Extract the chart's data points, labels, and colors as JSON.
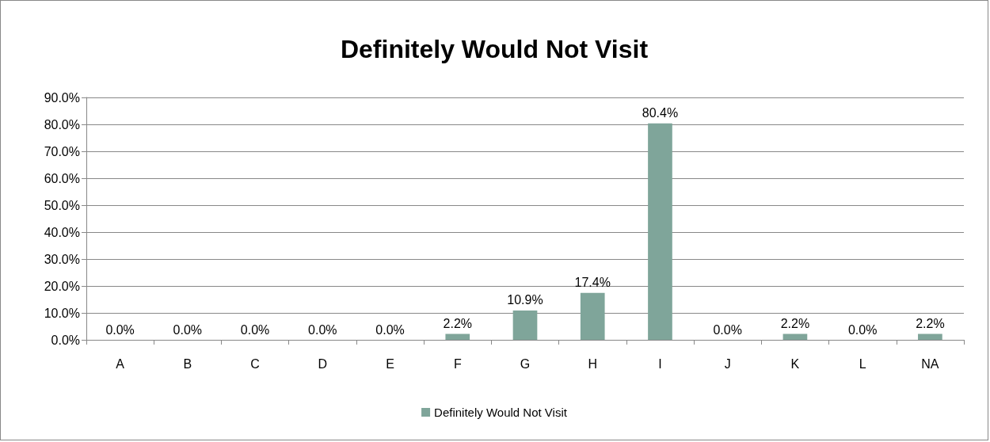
{
  "chart_data": {
    "type": "bar",
    "title": "Definitely Would Not Visit",
    "categories": [
      "A",
      "B",
      "C",
      "D",
      "E",
      "F",
      "G",
      "H",
      "I",
      "J",
      "K",
      "L",
      "NA"
    ],
    "series": [
      {
        "name": "Definitely Would Not Visit",
        "color": "#7fa59a",
        "values": [
          0,
          0,
          0,
          0,
          0,
          2.2,
          10.9,
          17.4,
          80.4,
          0,
          2.2,
          0,
          2.2
        ],
        "value_labels": [
          "0.0%",
          "0.0%",
          "0.0%",
          "0.0%",
          "0.0%",
          "2.2%",
          "10.9%",
          "17.4%",
          "80.4%",
          "0.0%",
          "2.2%",
          "0.0%",
          "2.2%"
        ]
      }
    ],
    "ylim": [
      0,
      90
    ],
    "yticks": [
      {
        "value": 0,
        "label": "0.0%"
      },
      {
        "value": 10,
        "label": "10.0%"
      },
      {
        "value": 20,
        "label": "20.0%"
      },
      {
        "value": 30,
        "label": "30.0%"
      },
      {
        "value": 40,
        "label": "40.0%"
      },
      {
        "value": 50,
        "label": "50.0%"
      },
      {
        "value": 60,
        "label": "60.0%"
      },
      {
        "value": 70,
        "label": "70.0%"
      },
      {
        "value": 80,
        "label": "80.0%"
      },
      {
        "value": 90,
        "label": "90.0%"
      }
    ],
    "grid": "y",
    "legend": "bottom"
  }
}
